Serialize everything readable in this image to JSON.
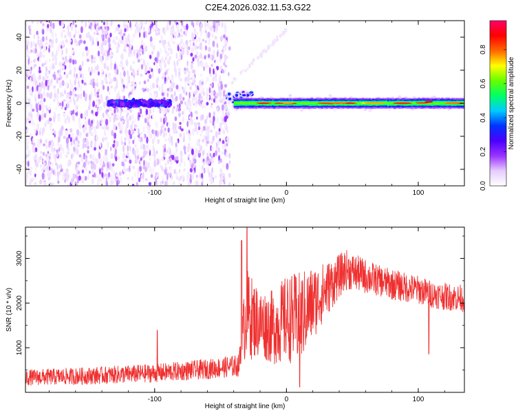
{
  "title": "C2E4.2026.032.11.53.G22",
  "chart_data": [
    {
      "type": "heatmap",
      "xlabel": "Height of straight line (km)",
      "ylabel": "Frequency (Hz)",
      "xlim": [
        -198,
        135
      ],
      "ylim": [
        -50,
        50
      ],
      "x_ticks": [
        -100,
        0,
        100
      ],
      "y_ticks": [
        -40,
        -20,
        0,
        20,
        40
      ],
      "colorbar": {
        "label": "Normalized spectral amplitude",
        "range": [
          0.0,
          0.97
        ],
        "ticks": [
          0.0,
          0.2,
          0.4,
          0.6,
          0.8
        ],
        "colors": [
          "#ffffff",
          "#e6ccff",
          "#9933ff",
          "#4b00ff",
          "#0033ff",
          "#00ccff",
          "#00ff66",
          "#66ff00",
          "#ffff00",
          "#ff6600",
          "#ff0000",
          "#ff0066"
        ]
      },
      "regions": [
        {
          "x_range": [
            -198,
            -43
          ],
          "freq_range": [
            -50,
            50
          ],
          "pattern": "broadband noise",
          "amplitude": 0.08
        },
        {
          "x_range": [
            -135,
            -88
          ],
          "freq_range": [
            -4,
            4
          ],
          "pattern": "noisy line",
          "amplitude": 0.25
        },
        {
          "x_range": [
            -45,
            -25
          ],
          "freq_range": [
            -4,
            8
          ],
          "pattern": "onset blobs",
          "amplitude": 0.3
        },
        {
          "x_range": [
            -40,
            135
          ],
          "freq_range": [
            -3,
            3
          ],
          "pattern": "carrier line",
          "amplitude": 0.55
        }
      ]
    },
    {
      "type": "line",
      "xlabel": "Height of straight line (km)",
      "ylabel": "SNR (10 * v/v)",
      "xlim": [
        -198,
        135
      ],
      "ylim": [
        0,
        3700
      ],
      "x_ticks": [
        -100,
        0,
        100
      ],
      "y_ticks": [
        1000,
        2000,
        3000
      ],
      "color": "#ef3030",
      "envelope": {
        "x": [
          -198,
          -150,
          -100,
          -60,
          -36,
          -33,
          -30,
          -28,
          -20,
          -10,
          0,
          10,
          20,
          30,
          40,
          45,
          50,
          60,
          70,
          80,
          90,
          100,
          110,
          120,
          135
        ],
        "center": [
          330,
          370,
          430,
          520,
          600,
          1300,
          1800,
          1700,
          1550,
          1450,
          1650,
          1650,
          2000,
          2300,
          2600,
          2750,
          2700,
          2600,
          2500,
          2420,
          2350,
          2300,
          2200,
          2150,
          2100
        ],
        "noise": [
          130,
          140,
          150,
          160,
          180,
          500,
          700,
          700,
          550,
          600,
          700,
          750,
          600,
          450,
          350,
          330,
          300,
          280,
          250,
          250,
          240,
          230,
          220,
          220,
          220
        ]
      },
      "spikes": [
        {
          "x": -30,
          "y": 3700
        },
        {
          "x": -34,
          "y": 3400
        },
        {
          "x": -98,
          "y": 1390
        },
        {
          "x": 10,
          "y": 120
        },
        {
          "x": 108,
          "y": 860
        }
      ]
    }
  ]
}
